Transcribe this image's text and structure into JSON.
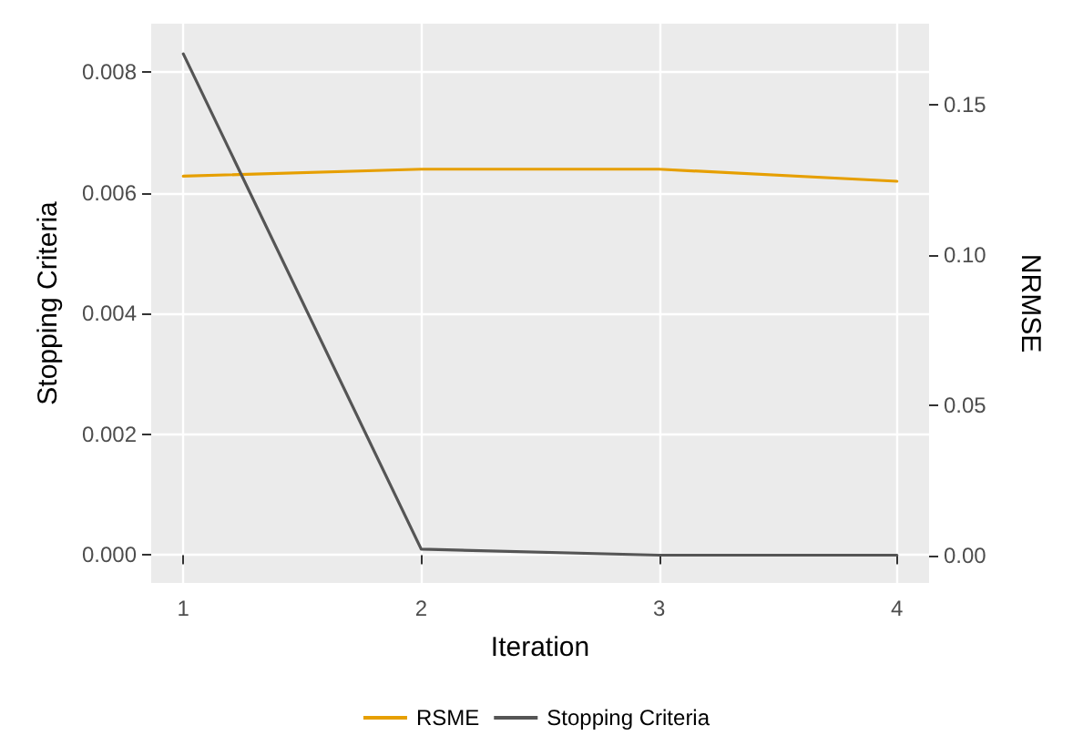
{
  "chart_data": {
    "type": "line",
    "xlabel": "Iteration",
    "ylabel": "Stopping Criteria",
    "y2label": "NRMSE",
    "x": [
      1,
      2,
      3,
      4
    ],
    "xlim": [
      0.865,
      4.135
    ],
    "xticks": [
      1,
      2,
      3,
      4
    ],
    "ylim": [
      -0.00046,
      0.0088
    ],
    "yticks": [
      {
        "value": 0,
        "label": "0.000"
      },
      {
        "value": 0.002,
        "label": "0.002"
      },
      {
        "value": 0.004,
        "label": "0.004"
      },
      {
        "value": 0.006,
        "label": "0.006"
      },
      {
        "value": 0.008,
        "label": "0.008"
      }
    ],
    "y2lim": [
      -0.009,
      0.177
    ],
    "y2ticks": [
      {
        "value": 0,
        "label": "0.00"
      },
      {
        "value": 0.05,
        "label": "0.05"
      },
      {
        "value": 0.1,
        "label": "0.10"
      },
      {
        "value": 0.15,
        "label": "0.15"
      }
    ],
    "series": [
      {
        "name": "RSME",
        "color": "#e69f00",
        "axis": "y2",
        "values": [
          0.1263,
          0.1286,
          0.1286,
          0.1246
        ]
      },
      {
        "name": "Stopping Criteria",
        "color": "#555555",
        "values": [
          0.0083,
          0.0001,
          0,
          0
        ]
      }
    ],
    "grid": true,
    "legend": "bottom",
    "marker": "none",
    "line_style": "solid"
  }
}
